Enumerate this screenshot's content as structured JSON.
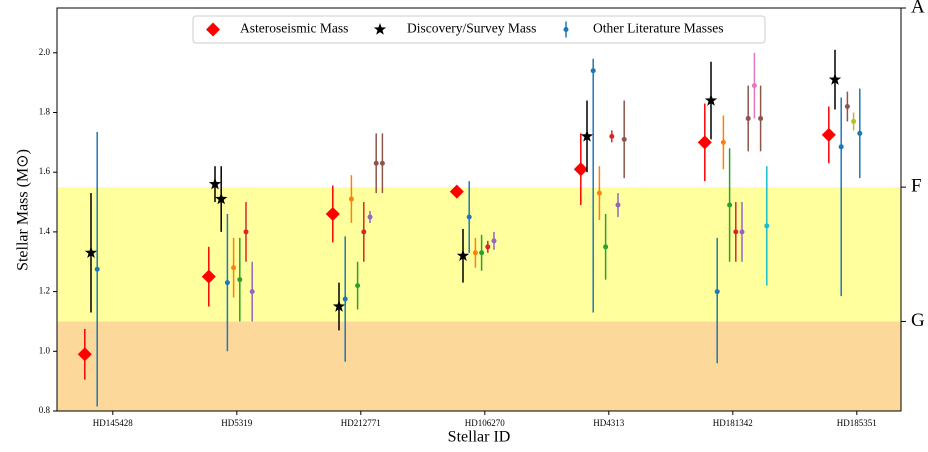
{
  "chart_data": {
    "type": "errorbar",
    "ylabel": "Stellar Mass (M⊙)",
    "xlabel": "Stellar ID",
    "categories": [
      "HD145428",
      "HD5319",
      "HD212771",
      "HD106270",
      "HD4313",
      "HD181342",
      "HD185351"
    ],
    "ylim": [
      0.8,
      2.15
    ],
    "yticks": [
      0.8,
      {
        "value": 1,
        "label": "1.0"
      },
      1.2,
      1.4,
      1.6,
      1.8,
      {
        "value": 2,
        "label": "2.0"
      }
    ],
    "y2ticks": [
      {
        "value": 1.1,
        "label": "G"
      },
      {
        "value": 1.55,
        "label": "F"
      },
      {
        "value": 2.15,
        "label": "A"
      }
    ],
    "bands": [
      {
        "from": 0.8,
        "to": 1.1,
        "color": "#fdd89b"
      },
      {
        "from": 1.1,
        "to": 1.55,
        "color": "#ffff9e"
      }
    ],
    "legend": "upper center",
    "series": [
      {
        "name": "Asteroseismic Mass",
        "marker": "diamond",
        "color": "#ff0000",
        "values": [
          [
            0.99
          ],
          [
            1.25
          ],
          [
            1.46
          ],
          [
            1.535
          ],
          [
            1.61
          ],
          [
            1.7
          ],
          [
            1.725
          ]
        ],
        "errors": [
          [
            0.085
          ],
          [
            0.1
          ],
          [
            0.095
          ],
          [
            0.02
          ],
          [
            0.12
          ],
          [
            0.13
          ],
          [
            0.095
          ]
        ]
      },
      {
        "name": "Discovery/Survey Mass",
        "marker": "star",
        "color": "#000000",
        "values": [
          [
            1.33
          ],
          [
            1.56,
            1.51
          ],
          [
            1.15
          ],
          [
            1.32
          ],
          [
            1.72
          ],
          [
            1.84
          ],
          [
            1.91
          ]
        ],
        "errors": [
          [
            0.2
          ],
          [
            0.06,
            0.11
          ],
          [
            0.08
          ],
          [
            0.09
          ],
          [
            0.12
          ],
          [
            0.13
          ],
          [
            0.1
          ]
        ]
      },
      {
        "name": "Other Literature Masses",
        "marker": "circle",
        "color": "#1f77b4",
        "values": [
          [
            1.275
          ],
          [
            1.23,
            1.28,
            1.24,
            1.4,
            1.2
          ],
          [
            1.175,
            1.51,
            1.22,
            1.4,
            1.45,
            1.63,
            1.63
          ],
          [
            1.45,
            1.33,
            1.33,
            1.35,
            1.37
          ],
          [
            1.94,
            1.53,
            1.35,
            1.72,
            1.49,
            1.71
          ],
          [
            1.2,
            1.7,
            1.49,
            1.4,
            1.4,
            1.78,
            1.89,
            1.78,
            1.42
          ],
          [
            1.685,
            1.82,
            1.77,
            1.73
          ]
        ],
        "errors": [
          [
            0.46
          ],
          [
            0.23,
            0.1,
            0.14,
            0.1,
            0.1
          ],
          [
            0.21,
            0.08,
            0.08,
            0.1,
            0.02,
            0.1,
            0.1
          ],
          [
            0.12,
            0.05,
            0.06,
            0.02,
            0.03
          ],
          [
            [
              0.81,
              0.04
            ],
            0.09,
            0.11,
            0.02,
            0.04,
            0.13
          ],
          [
            [
              0.24,
              0.18
            ],
            0.09,
            0.19,
            0.1,
            0.1,
            0.11,
            0.11,
            0.11,
            0.2
          ],
          [
            [
              0.5,
              0.165
            ],
            0.05,
            0.03,
            0.15
          ]
        ],
        "colors": [
          [
            "#1f77b4"
          ],
          [
            "#1f77b4",
            "#ff7f0e",
            "#2ca02c",
            "#d62728",
            "#9467bd"
          ],
          [
            "#1f77b4",
            "#ff7f0e",
            "#2ca02c",
            "#d62728",
            "#9467bd",
            "#8c564b",
            "#8c564b"
          ],
          [
            "#1f77b4",
            "#ff7f0e",
            "#2ca02c",
            "#d62728",
            "#9467bd"
          ],
          [
            "#1f77b4",
            "#ff7f0e",
            "#2ca02c",
            "#d62728",
            "#9467bd",
            "#8c564b"
          ],
          [
            "#1f77b4",
            "#ff7f0e",
            "#2ca02c",
            "#d62728",
            "#9467bd",
            "#8c564b",
            "#e377c2",
            "#8c564b",
            "#17becf"
          ],
          [
            "#1f77b4",
            "#8c564b",
            "#bcbd22",
            "#1f77b4"
          ]
        ]
      }
    ]
  }
}
